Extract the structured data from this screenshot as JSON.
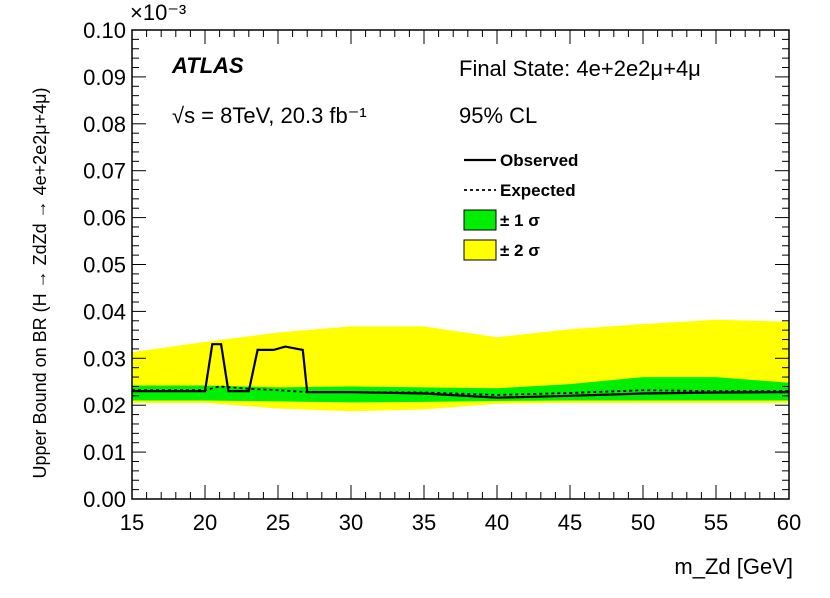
{
  "chart_data": {
    "type": "line",
    "experiment": "ATLAS",
    "energy_lumi": "√s = 8TeV, 20.3 fb⁻¹",
    "final_state": "Final State: 4e+2e2μ+4μ",
    "cl": "95% CL",
    "xlabel": "m_Zd [GeV]",
    "ylabel": "Upper Bound on BR (H → ZdZd → 4e+2e2μ+4μ)",
    "y_exponent": "×10⁻³",
    "xlim": [
      15,
      60
    ],
    "ylim": [
      0.0,
      0.1
    ],
    "x_ticks": [
      "15",
      "20",
      "25",
      "30",
      "35",
      "40",
      "45",
      "50",
      "55",
      "60"
    ],
    "y_ticks": [
      "0.00",
      "0.01",
      "0.02",
      "0.03",
      "0.04",
      "0.05",
      "0.06",
      "0.07",
      "0.08",
      "0.09",
      "0.10"
    ],
    "legend": {
      "observed": "Observed",
      "expected": "Expected",
      "band1": "± 1 σ",
      "band2": "± 2 σ"
    },
    "colors": {
      "band1": "#00ee00",
      "band2": "#ffff00",
      "line": "#000000"
    },
    "band2": {
      "x": [
        15,
        20,
        25,
        30,
        35,
        40,
        45,
        50,
        55,
        60
      ],
      "low": [
        0.0205,
        0.0205,
        0.0193,
        0.0187,
        0.0191,
        0.0203,
        0.0205,
        0.0205,
        0.0205,
        0.0205
      ],
      "high": [
        0.0313,
        0.0335,
        0.0355,
        0.0368,
        0.0368,
        0.0345,
        0.0362,
        0.0373,
        0.0382,
        0.0378
      ]
    },
    "band1": {
      "x": [
        15,
        20,
        25,
        30,
        35,
        40,
        45,
        50,
        55,
        60
      ],
      "low": [
        0.021,
        0.021,
        0.0208,
        0.0206,
        0.0207,
        0.0209,
        0.021,
        0.021,
        0.021,
        0.021
      ],
      "high": [
        0.0242,
        0.0242,
        0.0238,
        0.024,
        0.0238,
        0.0236,
        0.0245,
        0.026,
        0.026,
        0.0248
      ]
    },
    "expected": {
      "x": [
        15,
        20,
        21,
        23,
        25,
        27,
        30,
        35,
        40,
        45,
        50,
        55,
        60
      ],
      "y": [
        0.0232,
        0.0232,
        0.024,
        0.0235,
        0.0232,
        0.0228,
        0.0228,
        0.0227,
        0.0222,
        0.0226,
        0.0232,
        0.023,
        0.023
      ]
    },
    "observed": {
      "x": [
        15,
        20,
        20.5,
        21.1,
        21.6,
        23,
        23.6,
        24.7,
        25.5,
        26.7,
        27,
        30,
        35,
        40,
        45,
        50,
        55,
        60
      ],
      "y": [
        0.023,
        0.023,
        0.033,
        0.033,
        0.023,
        0.023,
        0.0318,
        0.0318,
        0.0325,
        0.0318,
        0.0228,
        0.0228,
        0.0225,
        0.0216,
        0.022,
        0.0225,
        0.0227,
        0.0228
      ]
    }
  }
}
